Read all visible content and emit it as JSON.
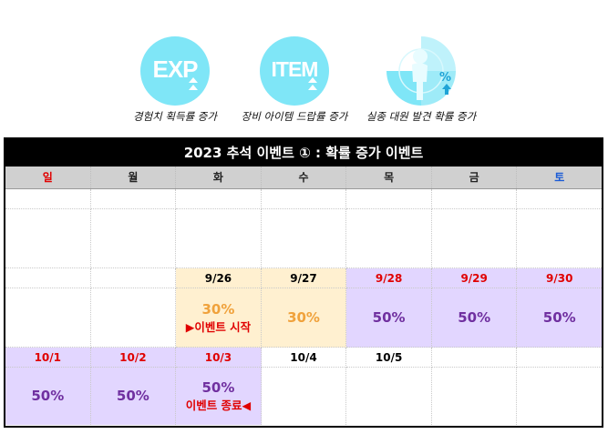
{
  "icons": [
    {
      "text": "EXP",
      "label": "경험치 획득률 증가"
    },
    {
      "text": "ITEM",
      "label": "장비 아이템 드랍률 증가"
    },
    {
      "text": "%",
      "label": "실종 대원 발견 확률 증가"
    }
  ],
  "calendar": {
    "title": "2023 추석 이벤트 ① : 확률 증가 이벤트",
    "weekdays": [
      "일",
      "월",
      "화",
      "수",
      "목",
      "금",
      "토"
    ],
    "week1": {
      "dates": [
        "",
        "",
        "9/26",
        "9/27",
        "9/28",
        "9/29",
        "9/30"
      ],
      "values": [
        "",
        "",
        "30%",
        "30%",
        "50%",
        "50%",
        "50%"
      ],
      "start_note": "▶이벤트 시작"
    },
    "week2": {
      "dates": [
        "10/1",
        "10/2",
        "10/3",
        "10/4",
        "10/5",
        "",
        ""
      ],
      "values": [
        "50%",
        "50%",
        "50%",
        "",
        "",
        "",
        ""
      ],
      "end_note": "이벤트 종료◀"
    }
  },
  "colors": {
    "icon_bg": "#7fe6f7",
    "header_bg": "#000000",
    "weekday_bg": "#d0d0d0",
    "highlight_lavender": "#e2d6ff",
    "highlight_cream": "#fff0d0",
    "red": "#e00000",
    "blue": "#1a5bd6",
    "orange": "#f0a23c",
    "purple": "#7030a0"
  }
}
